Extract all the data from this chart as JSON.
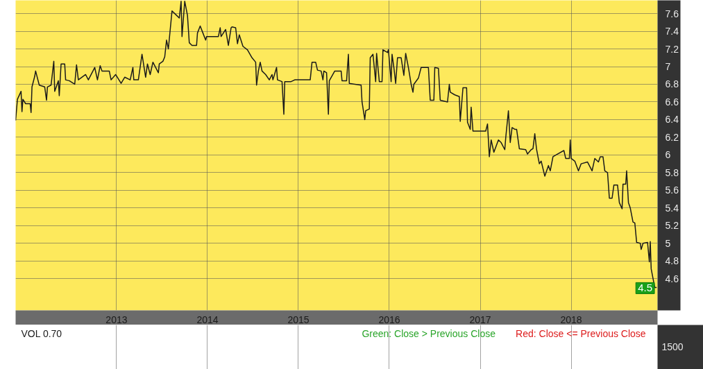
{
  "chart_data": [
    {
      "type": "line",
      "xlim": [
        2011.89,
        2018.95
      ],
      "ylim": [
        4.24,
        7.75
      ],
      "xticks": [
        2013,
        2014,
        2015,
        2016,
        2017,
        2018
      ],
      "yticks": [
        4.6,
        4.8,
        5.0,
        5.2,
        5.4,
        5.6,
        5.8,
        6.0,
        6.2,
        6.4,
        6.6,
        6.8,
        7.0,
        7.2,
        7.4,
        7.6
      ],
      "grid": true,
      "x": [
        2011.89,
        2011.91,
        2011.95,
        2011.96,
        2011.97,
        2012.0,
        2012.05,
        2012.06,
        2012.07,
        2012.1,
        2012.11,
        2012.15,
        2012.21,
        2012.23,
        2012.24,
        2012.28,
        2012.31,
        2012.32,
        2012.36,
        2012.37,
        2012.39,
        2012.43,
        2012.44,
        2012.48,
        2012.54,
        2012.56,
        2012.58,
        2012.66,
        2012.69,
        2012.76,
        2012.79,
        2012.82,
        2012.84,
        2012.92,
        2012.94,
        2012.99,
        2013.05,
        2013.09,
        2013.15,
        2013.18,
        2013.19,
        2013.24,
        2013.28,
        2013.32,
        2013.34,
        2013.37,
        2013.4,
        2013.46,
        2013.47,
        2013.51,
        2013.53,
        2013.55,
        2013.57,
        2013.61,
        2013.66,
        2013.69,
        2013.71,
        2013.72,
        2013.75,
        2013.78,
        2013.8,
        2013.83,
        2013.88,
        2013.89,
        2013.92,
        2013.95,
        2013.98,
        2013.99,
        2014.12,
        2014.14,
        2014.15,
        2014.2,
        2014.23,
        2014.26,
        2014.27,
        2014.31,
        2014.33,
        2014.35,
        2014.39,
        2014.44,
        2014.49,
        2014.53,
        2014.54,
        2014.56,
        2014.58,
        2014.6,
        2014.64,
        2014.68,
        2014.71,
        2014.72,
        2014.76,
        2014.77,
        2014.82,
        2014.84,
        2014.85,
        2014.92,
        2014.96,
        2015.13,
        2015.15,
        2015.19,
        2015.21,
        2015.25,
        2015.27,
        2015.28,
        2015.31,
        2015.33,
        2015.34,
        2015.4,
        2015.47,
        2015.48,
        2015.53,
        2015.55,
        2015.56,
        2015.69,
        2015.7,
        2015.73,
        2015.74,
        2015.78,
        2015.79,
        2015.82,
        2015.85,
        2015.86,
        2015.89,
        2015.92,
        2015.93,
        2015.98,
        2015.99,
        2016.02,
        2016.03,
        2016.05,
        2016.07,
        2016.09,
        2016.13,
        2016.16,
        2016.18,
        2016.21,
        2016.24,
        2016.26,
        2016.27,
        2016.32,
        2016.35,
        2016.43,
        2016.45,
        2016.49,
        2016.5,
        2016.54,
        2016.56,
        2016.64,
        2016.66,
        2016.67,
        2016.72,
        2016.77,
        2016.78,
        2016.81,
        2016.85,
        2016.86,
        2016.89,
        2016.9,
        2016.92,
        2017.06,
        2017.08,
        2017.1,
        2017.12,
        2017.15,
        2017.2,
        2017.23,
        2017.27,
        2017.28,
        2017.31,
        2017.33,
        2017.35,
        2017.38,
        2017.4,
        2017.43,
        2017.5,
        2017.52,
        2017.56,
        2017.58,
        2017.6,
        2017.62,
        2017.65,
        2017.67,
        2017.71,
        2017.75,
        2017.77,
        2017.8,
        2017.85,
        2017.92,
        2017.94,
        2017.98,
        2017.99,
        2018.0,
        2018.04,
        2018.08,
        2018.11,
        2018.18,
        2018.23,
        2018.26,
        2018.3,
        2018.32,
        2018.35,
        2018.37,
        2018.4,
        2018.42,
        2018.45,
        2018.47,
        2018.51,
        2018.53,
        2018.56,
        2018.57,
        2018.6,
        2018.61,
        2018.63,
        2018.65,
        2018.68,
        2018.7,
        2018.72,
        2018.76,
        2018.77,
        2018.79,
        2018.84,
        2018.86,
        2018.87,
        2018.88,
        2018.91,
        2018.92,
        2018.94
      ],
      "series": [
        {
          "color": "#1a1a1a",
          "values": [
            6.39,
            6.63,
            6.72,
            6.49,
            6.63,
            6.58,
            6.58,
            6.48,
            6.77,
            6.89,
            6.95,
            6.79,
            6.77,
            6.62,
            6.77,
            6.79,
            7.06,
            6.72,
            6.84,
            6.67,
            7.03,
            7.03,
            6.85,
            6.84,
            6.8,
            7.02,
            6.85,
            6.91,
            6.85,
            6.99,
            6.85,
            7.01,
            6.95,
            6.95,
            6.85,
            6.91,
            6.81,
            6.88,
            6.85,
            6.99,
            6.85,
            6.85,
            7.14,
            6.88,
            7.03,
            6.91,
            7.05,
            6.93,
            7.03,
            7.06,
            7.11,
            7.3,
            7.2,
            7.63,
            7.58,
            7.55,
            7.74,
            7.34,
            7.74,
            7.58,
            7.27,
            7.24,
            7.24,
            7.38,
            7.46,
            7.38,
            7.3,
            7.34,
            7.34,
            7.44,
            7.34,
            7.42,
            7.24,
            7.44,
            7.45,
            7.44,
            7.26,
            7.36,
            7.23,
            7.19,
            7.1,
            7.05,
            6.79,
            6.95,
            7.05,
            6.95,
            6.91,
            6.85,
            6.91,
            6.85,
            6.99,
            6.85,
            6.83,
            6.46,
            6.83,
            6.83,
            6.85,
            6.85,
            7.05,
            7.05,
            6.96,
            6.95,
            6.85,
            6.95,
            6.93,
            6.46,
            6.84,
            6.95,
            6.95,
            6.84,
            6.84,
            7.14,
            6.81,
            6.79,
            6.6,
            6.4,
            6.5,
            6.52,
            7.1,
            7.14,
            6.83,
            7.15,
            6.83,
            6.83,
            7.19,
            7.16,
            7.19,
            6.83,
            7.14,
            6.99,
            6.81,
            7.1,
            7.1,
            6.9,
            7.15,
            6.99,
            6.8,
            6.71,
            6.8,
            6.87,
            6.99,
            6.99,
            6.62,
            6.62,
            6.99,
            6.98,
            6.62,
            6.6,
            6.8,
            6.71,
            6.68,
            6.66,
            6.38,
            6.76,
            6.76,
            6.37,
            6.29,
            6.54,
            6.27,
            6.27,
            6.35,
            5.98,
            6.17,
            6.03,
            6.17,
            6.14,
            6.06,
            6.19,
            6.5,
            6.14,
            6.31,
            6.29,
            6.29,
            6.07,
            6.06,
            6.01,
            6.06,
            6.07,
            6.24,
            6.06,
            5.9,
            5.93,
            5.76,
            5.88,
            5.82,
            5.98,
            6.01,
            6.05,
            5.96,
            5.96,
            6.17,
            5.96,
            5.93,
            5.82,
            5.9,
            5.92,
            5.82,
            5.96,
            5.92,
            5.98,
            5.98,
            5.82,
            5.8,
            5.51,
            5.51,
            5.66,
            5.66,
            5.46,
            5.39,
            5.67,
            5.67,
            5.82,
            5.46,
            5.4,
            5.24,
            5.23,
            5.01,
            5.0,
            4.93,
            5.0,
            5.01,
            4.79,
            5.02,
            4.71,
            4.55,
            4.5,
            4.5
          ]
        }
      ],
      "annotations": [
        {
          "text": "4.5",
          "x": 2018.94,
          "y": 4.5
        }
      ]
    },
    {
      "type": "other",
      "annotations": [
        "VOL  0.70",
        "Green: Close > Previous Close",
        "Red: Close <= Previous Close",
        "1500"
      ]
    }
  ]
}
